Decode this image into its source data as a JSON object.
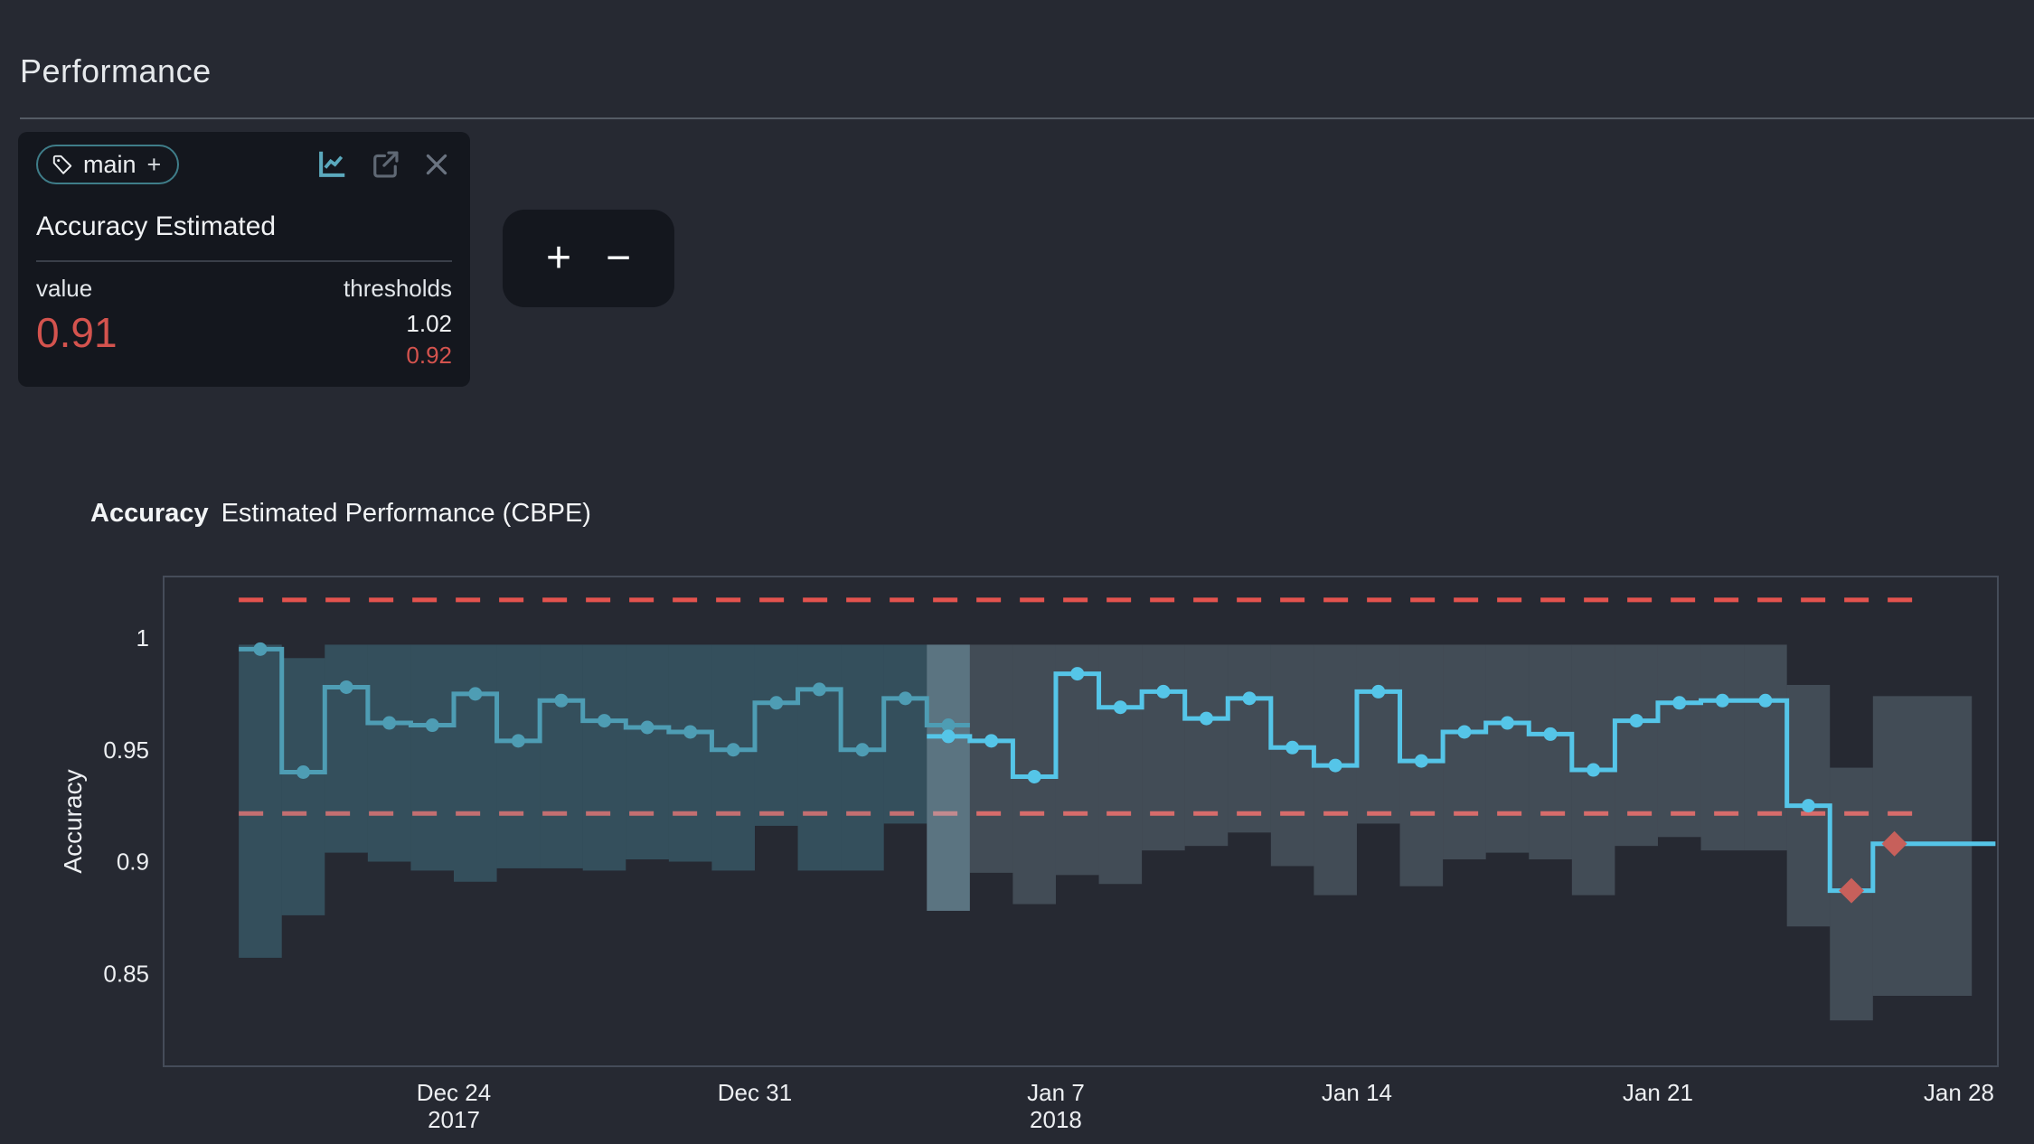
{
  "header": {
    "title": "Performance"
  },
  "metric_card": {
    "tag_chip": {
      "label": "main",
      "add_label": "+"
    },
    "toolbar_icons": [
      "line-chart-icon",
      "external-link-icon",
      "close-icon"
    ],
    "title": "Accuracy Estimated",
    "value_label": "value",
    "value": "0.91",
    "thresholds_label": "thresholds",
    "threshold_upper": "1.02",
    "threshold_lower": "0.92"
  },
  "zoom_controls": {
    "zoom_in": "+",
    "zoom_out": "−"
  },
  "chart": {
    "title_metric": "Accuracy",
    "title_rest": "Estimated Performance (CBPE)",
    "y_axis_label": "Accuracy"
  },
  "colors": {
    "page_bg": "#262932",
    "card_bg": "#14171e",
    "accent_red": "#d4534e",
    "threshold_red": "#e4534e",
    "alert_red": "#c7605b",
    "reference_line": "#4e9db4",
    "analysis_line": "#55c5e8",
    "reference_band": "rgba(94,197,218,0.25)",
    "analysis_band": "rgba(170,200,215,0.22)",
    "highlight_band": "rgba(150,210,230,0.30)",
    "plot_border": "#454c59",
    "tick_text": "#edeff2"
  },
  "chart_data": {
    "type": "line",
    "subtype": "step-line-with-confidence-bands",
    "title": "Accuracy Estimated Performance (CBPE)",
    "xlabel": "",
    "ylabel": "Accuracy",
    "y_domain": [
      0.808,
      1.028
    ],
    "x_domain_t": [
      -1.75,
      40.9
    ],
    "grid": false,
    "legend": "none",
    "x_ticks": [
      {
        "t": 5,
        "label": "Dec 24",
        "sub": "2017"
      },
      {
        "t": 12,
        "label": "Dec 31",
        "sub": ""
      },
      {
        "t": 19,
        "label": "Jan 7",
        "sub": "2018"
      },
      {
        "t": 26,
        "label": "Jan 14",
        "sub": ""
      },
      {
        "t": 33,
        "label": "Jan 21",
        "sub": ""
      },
      {
        "t": 40,
        "label": "Jan 28",
        "sub": ""
      }
    ],
    "y_ticks": [
      {
        "v": 1.0,
        "label": "1"
      },
      {
        "v": 0.95,
        "label": "0.95"
      },
      {
        "v": 0.9,
        "label": "0.9"
      },
      {
        "v": 0.85,
        "label": "0.85"
      }
    ],
    "thresholds": {
      "upper": 1.017,
      "lower": 0.9215,
      "upper_label": "1.02",
      "lower_label": "0.92",
      "span_t": [
        0,
        39
      ]
    },
    "chunk_edges_t": [
      0,
      1,
      2,
      3,
      4,
      5,
      6,
      7,
      8,
      9,
      10,
      11,
      12,
      13,
      14,
      15,
      16,
      17,
      18,
      19,
      20,
      21,
      22,
      23,
      24,
      25,
      26,
      27,
      28,
      29,
      30,
      31,
      32,
      33,
      34,
      35,
      36,
      37,
      38,
      40.3
    ],
    "chunk_centers_t": [
      0.5,
      1.5,
      2.5,
      3.5,
      4.5,
      5.5,
      6.5,
      7.5,
      8.5,
      9.5,
      10.5,
      11.5,
      12.5,
      13.5,
      14.5,
      15.5,
      16.5,
      17.5,
      18.5,
      19.5,
      20.5,
      21.5,
      22.5,
      23.5,
      24.5,
      25.5,
      26.5,
      27.5,
      28.5,
      29.5,
      30.5,
      31.5,
      32.5,
      33.5,
      34.5,
      35.5,
      36.5,
      37.5,
      38.5
    ],
    "series": [
      {
        "name": "reference-estimated-accuracy",
        "start_chunk": 0,
        "values": [
          0.995,
          0.94,
          0.978,
          0.962,
          0.961,
          0.975,
          0.954,
          0.972,
          0.963,
          0.96,
          0.958,
          0.95,
          0.971,
          0.977,
          0.95,
          0.973,
          0.961
        ],
        "alert_chunks": []
      },
      {
        "name": "analysis-estimated-accuracy",
        "start_chunk": 16,
        "values": [
          0.956,
          0.954,
          0.938,
          0.984,
          0.969,
          0.976,
          0.964,
          0.973,
          0.951,
          0.943,
          0.976,
          0.945,
          0.958,
          0.962,
          0.957,
          0.941,
          0.963,
          0.971,
          0.972,
          0.972,
          0.925,
          0.887,
          0.908
        ],
        "alert_chunks": [
          37,
          38
        ]
      }
    ],
    "bands": {
      "lower": [
        0.857,
        0.876,
        0.904,
        0.9,
        0.896,
        0.891,
        0.897,
        0.897,
        0.896,
        0.901,
        0.9,
        0.896,
        0.916,
        0.896,
        0.896,
        0.917,
        0.878,
        0.895,
        0.881,
        0.894,
        0.89,
        0.905,
        0.907,
        0.913,
        0.898,
        0.885,
        0.917,
        0.889,
        0.901,
        0.904,
        0.901,
        0.885,
        0.907,
        0.911,
        0.905,
        0.905,
        0.871,
        0.829,
        0.84
      ],
      "upper": [
        0.997,
        0.991,
        0.997,
        0.997,
        0.997,
        0.997,
        0.997,
        0.997,
        0.997,
        0.997,
        0.997,
        0.997,
        0.997,
        0.997,
        0.997,
        0.997,
        0.997,
        0.997,
        0.997,
        0.997,
        0.997,
        0.997,
        0.997,
        0.997,
        0.997,
        0.997,
        0.997,
        0.997,
        0.997,
        0.997,
        0.997,
        0.997,
        0.997,
        0.997,
        0.997,
        0.997,
        0.979,
        0.942,
        0.974
      ]
    },
    "highlight_chunk": 16,
    "line_end_t": 40.85
  }
}
